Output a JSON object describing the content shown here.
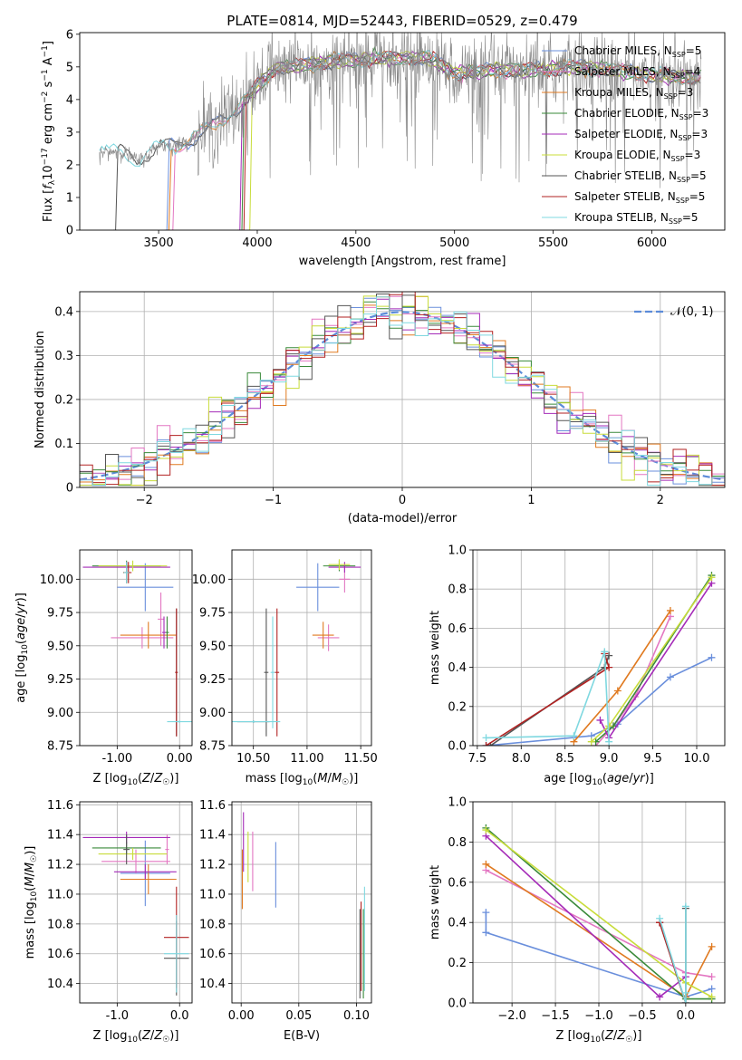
{
  "figure_title": "PLATE=0814, MJD=52443, FIBERID=0529, z=0.479",
  "models": [
    {
      "name": "Chabrier MILES",
      "nssp": "5",
      "color": "#6a8fdc"
    },
    {
      "name": "Salpeter MILES",
      "nssp": "4",
      "color": "#e377c2"
    },
    {
      "name": "Kroupa MILES",
      "nssp": "3",
      "color": "#e07a20"
    },
    {
      "name": "Chabrier ELODIE",
      "nssp": "3",
      "color": "#3a8a3a"
    },
    {
      "name": "Salpeter ELODIE",
      "nssp": "3",
      "color": "#a52bb8"
    },
    {
      "name": "Kroupa ELODIE",
      "nssp": "3",
      "color": "#c8dc3a"
    },
    {
      "name": "Chabrier STELIB",
      "nssp": "5",
      "color": "#555555"
    },
    {
      "name": "Salpeter STELIB",
      "nssp": "5",
      "color": "#b22222"
    },
    {
      "name": "Kroupa STELIB",
      "nssp": "5",
      "color": "#7fd8e0"
    }
  ],
  "chart_data": [
    {
      "id": "spectrum",
      "type": "line",
      "xlabel": "wavelength [Angstrom, rest frame]",
      "ylabel": "Flux [f_λ 10^-17 erg cm^-2 s^-1 A^-1]",
      "xlim": [
        3100,
        6370
      ],
      "ylim": [
        0,
        6.05
      ],
      "xticks": [
        3500,
        4000,
        4500,
        5000,
        5500,
        6000
      ],
      "yticks": [
        0,
        1,
        2,
        3,
        4,
        5,
        6
      ],
      "legend_position": "right",
      "data_color": "#888888",
      "observed_trend": {
        "x": [
          3200,
          3300,
          3400,
          3500,
          3600,
          3700,
          3800,
          3900,
          4000,
          4100,
          4200,
          4300,
          4400,
          4500,
          4600,
          4700,
          4800,
          4900,
          5000,
          5200,
          5400,
          5600,
          5800,
          6000,
          6200
        ],
        "y": [
          2.35,
          2.45,
          2.1,
          2.6,
          2.6,
          2.9,
          3.3,
          3.7,
          4.4,
          5.0,
          5.0,
          5.1,
          5.2,
          5.2,
          5.25,
          5.25,
          5.3,
          5.2,
          4.8,
          4.9,
          4.9,
          5.0,
          4.9,
          4.75,
          4.65
        ]
      }
    },
    {
      "id": "residuals",
      "type": "histogram",
      "xlabel": "(data-model)/error",
      "ylabel": "Normed distribution",
      "xlim": [
        -2.5,
        2.5
      ],
      "ylim": [
        0,
        0.445
      ],
      "xticks": [
        -2,
        -1,
        0,
        1,
        2
      ],
      "yticks": [
        0,
        0.1,
        0.2,
        0.3,
        0.4
      ],
      "bin_width": 0.1,
      "reference_curve": "N(0,1)",
      "reference_label": "𝒩(0, 1)",
      "legend_position": "top-right",
      "grid": true
    },
    {
      "id": "age_vs_Z",
      "type": "scatter",
      "xlabel": "Z [log10(Z/Z☉)]",
      "ylabel": "age  [log10(age/yr)]",
      "xlim": [
        -1.6,
        0.2
      ],
      "ylim": [
        8.75,
        10.22
      ],
      "xticks": [
        -1,
        0
      ],
      "yticks": [
        8.75,
        9.0,
        9.25,
        9.5,
        9.75,
        10.0
      ],
      "grid": true,
      "points": [
        {
          "model": 0,
          "x": -0.55,
          "y": 9.94,
          "xerr": 0.45,
          "yerr": 0.18
        },
        {
          "model": 1,
          "x": -0.6,
          "y": 9.56,
          "xerr": 0.5,
          "yerr": 0.08
        },
        {
          "model": 1,
          "x": -0.3,
          "y": 9.7,
          "xerr": 0.05,
          "yerr": 0.2
        },
        {
          "model": 2,
          "x": -0.5,
          "y": 9.58,
          "xerr": 0.45,
          "yerr": 0.1
        },
        {
          "model": 2,
          "x": -0.85,
          "y": 10.05,
          "xerr": 0.05,
          "yerr": 0.08
        },
        {
          "model": 3,
          "x": -0.85,
          "y": 10.1,
          "xerr": 0.55,
          "yerr": 0.04
        },
        {
          "model": 3,
          "x": -0.2,
          "y": 9.6,
          "xerr": 0.03,
          "yerr": 0.12
        },
        {
          "model": 4,
          "x": -0.85,
          "y": 10.09,
          "xerr": 0.7,
          "yerr": 0.04
        },
        {
          "model": 4,
          "x": -0.25,
          "y": 9.6,
          "xerr": 0.03,
          "yerr": 0.12
        },
        {
          "model": 5,
          "x": -0.75,
          "y": 10.1,
          "xerr": 0.55,
          "yerr": 0.04
        },
        {
          "model": 6,
          "x": -0.85,
          "y": 10.05,
          "xerr": 0.05,
          "yerr": 0.08
        },
        {
          "model": 6,
          "x": -0.05,
          "y": 9.3,
          "xerr": 0.02,
          "yerr": 0.48
        },
        {
          "model": 7,
          "x": -0.05,
          "y": 9.3,
          "xerr": 0.02,
          "yerr": 0.48
        },
        {
          "model": 7,
          "x": -0.82,
          "y": 10.05,
          "xerr": 0.05,
          "yerr": 0.08
        },
        {
          "model": 8,
          "x": 0.0,
          "y": 8.93,
          "xerr": 0.2,
          "yerr": 0.01
        },
        {
          "model": 8,
          "x": -0.85,
          "y": 10.05,
          "xerr": 0.04,
          "yerr": 0.08
        }
      ]
    },
    {
      "id": "age_vs_mass",
      "type": "scatter",
      "xlabel": "mass [log10(M/M☉)]",
      "ylabel": "",
      "xlim": [
        10.3,
        11.6
      ],
      "ylim": [
        8.75,
        10.22
      ],
      "xticks": [
        10.5,
        11.0,
        11.5
      ],
      "yticks": [
        8.75,
        9.0,
        9.25,
        9.5,
        9.75,
        10.0
      ],
      "grid": true,
      "points": [
        {
          "model": 0,
          "x": 11.1,
          "y": 9.94,
          "xerr": 0.2,
          "yerr": 0.18
        },
        {
          "model": 1,
          "x": 11.2,
          "y": 9.56,
          "xerr": 0.1,
          "yerr": 0.1
        },
        {
          "model": 1,
          "x": 11.35,
          "y": 10.0,
          "xerr": 0.05,
          "yerr": 0.1
        },
        {
          "model": 2,
          "x": 11.15,
          "y": 9.58,
          "xerr": 0.1,
          "yerr": 0.1
        },
        {
          "model": 3,
          "x": 11.3,
          "y": 10.1,
          "xerr": 0.15,
          "yerr": 0.04
        },
        {
          "model": 4,
          "x": 11.35,
          "y": 10.09,
          "xerr": 0.15,
          "yerr": 0.04
        },
        {
          "model": 5,
          "x": 11.3,
          "y": 10.11,
          "xerr": 0.1,
          "yerr": 0.04
        },
        {
          "model": 6,
          "x": 10.62,
          "y": 9.3,
          "xerr": 0.02,
          "yerr": 0.48
        },
        {
          "model": 6,
          "x": 10.5,
          "y": 8.93,
          "xerr": 0.15,
          "yerr": 0.01
        },
        {
          "model": 7,
          "x": 10.72,
          "y": 9.3,
          "xerr": 0.02,
          "yerr": 0.48
        },
        {
          "model": 8,
          "x": 10.68,
          "y": 9.3,
          "xerr": 0.02,
          "yerr": 0.42
        },
        {
          "model": 8,
          "x": 10.5,
          "y": 8.93,
          "xerr": 0.25,
          "yerr": 0.01
        }
      ]
    },
    {
      "id": "weight_vs_age",
      "type": "line",
      "xlabel": "age  [log10(age/yr)]",
      "ylabel": "mass weight",
      "xlim": [
        7.45,
        10.32
      ],
      "ylim": [
        0,
        1.0
      ],
      "xticks": [
        7.5,
        8.0,
        8.5,
        9.0,
        9.5,
        10.0
      ],
      "yticks": [
        0,
        0.2,
        0.4,
        0.6,
        0.8,
        1.0
      ],
      "grid": true,
      "series": [
        {
          "model": 0,
          "x": [
            7.6,
            8.8,
            9.1,
            9.7,
            10.17
          ],
          "y": [
            0.0,
            0.05,
            0.11,
            0.35,
            0.45
          ]
        },
        {
          "model": 1,
          "x": [
            8.85,
            9.05,
            9.3,
            9.7
          ],
          "y": [
            0.0,
            0.1,
            0.25,
            0.66
          ]
        },
        {
          "model": 2,
          "x": [
            8.6,
            9.1,
            9.7
          ],
          "y": [
            0.02,
            0.28,
            0.69
          ]
        },
        {
          "model": 3,
          "x": [
            8.85,
            9.05,
            10.17
          ],
          "y": [
            0.02,
            0.1,
            0.87
          ]
        },
        {
          "model": 4,
          "x": [
            8.9,
            9.0,
            10.17
          ],
          "y": [
            0.13,
            0.04,
            0.83
          ]
        },
        {
          "model": 5,
          "x": [
            8.8,
            9.0,
            10.17
          ],
          "y": [
            0.02,
            0.1,
            0.86
          ]
        },
        {
          "model": 6,
          "x": [
            7.65,
            8.95,
            9.0
          ],
          "y": [
            0.0,
            0.4,
            0.46
          ]
        },
        {
          "model": 7,
          "x": [
            7.6,
            9.0,
            8.95
          ],
          "y": [
            0.0,
            0.4,
            0.47
          ]
        },
        {
          "model": 8,
          "x": [
            7.6,
            8.6,
            8.95,
            9.0
          ],
          "y": [
            0.04,
            0.05,
            0.48,
            0.02
          ]
        }
      ]
    },
    {
      "id": "mass_vs_Z",
      "type": "scatter",
      "xlabel": "Z [log10(Z/Z☉)]",
      "ylabel": "mass [log10(M/M☉)]",
      "xlim": [
        -1.6,
        0.2
      ],
      "ylim": [
        10.27,
        11.62
      ],
      "xticks": [
        -1,
        0
      ],
      "yticks": [
        10.4,
        10.6,
        10.8,
        11.0,
        11.2,
        11.4,
        11.6
      ],
      "grid": true,
      "points": [
        {
          "model": 0,
          "x": -0.55,
          "y": 11.14,
          "xerr": 0.4,
          "yerr": 0.22
        },
        {
          "model": 1,
          "x": -0.7,
          "y": 11.22,
          "xerr": 0.55,
          "yerr": 0.08
        },
        {
          "model": 1,
          "x": -0.2,
          "y": 11.3,
          "xerr": 0.03,
          "yerr": 0.1
        },
        {
          "model": 2,
          "x": -0.5,
          "y": 11.1,
          "xerr": 0.45,
          "yerr": 0.1
        },
        {
          "model": 3,
          "x": -0.85,
          "y": 11.31,
          "xerr": 0.55,
          "yerr": 0.04
        },
        {
          "model": 4,
          "x": -0.85,
          "y": 11.38,
          "xerr": 0.7,
          "yerr": 0.04
        },
        {
          "model": 4,
          "x": -0.55,
          "y": 11.15,
          "xerr": 0.5,
          "yerr": 0.05
        },
        {
          "model": 5,
          "x": -0.75,
          "y": 11.27,
          "xerr": 0.55,
          "yerr": 0.04
        },
        {
          "model": 6,
          "x": -0.85,
          "y": 11.3,
          "xerr": 0.05,
          "yerr": 0.1
        },
        {
          "model": 6,
          "x": -0.05,
          "y": 10.57,
          "xerr": 0.2,
          "yerr": 0.25
        },
        {
          "model": 7,
          "x": -0.05,
          "y": 10.71,
          "xerr": 0.2,
          "yerr": 0.34
        },
        {
          "model": 8,
          "x": -0.05,
          "y": 10.6,
          "xerr": 0.2,
          "yerr": 0.26
        }
      ]
    },
    {
      "id": "mass_vs_ebv",
      "type": "scatter",
      "xlabel": "E(B-V)",
      "ylabel": "",
      "xlim": [
        -0.008,
        0.113
      ],
      "ylim": [
        10.27,
        11.62
      ],
      "xticks": [
        0.0,
        0.05,
        0.1
      ],
      "yticks": [
        10.4,
        10.6,
        10.8,
        11.0,
        11.2,
        11.4,
        11.6
      ],
      "grid": true,
      "points": [
        {
          "model": 0,
          "x": 0.03,
          "y": 11.13,
          "xerr": 0,
          "yerr": 0.22
        },
        {
          "model": 1,
          "x": 0.01,
          "y": 11.22,
          "xerr": 0,
          "yerr": 0.2
        },
        {
          "model": 2,
          "x": 0.001,
          "y": 11.1,
          "xerr": 0,
          "yerr": 0.2
        },
        {
          "model": 3,
          "x": 0.106,
          "y": 10.6,
          "xerr": 0,
          "yerr": 0.3
        },
        {
          "model": 4,
          "x": 0.002,
          "y": 11.35,
          "xerr": 0,
          "yerr": 0.2
        },
        {
          "model": 5,
          "x": 0.006,
          "y": 11.25,
          "xerr": 0,
          "yerr": 0.17
        },
        {
          "model": 6,
          "x": 0.103,
          "y": 10.6,
          "xerr": 0,
          "yerr": 0.3
        },
        {
          "model": 7,
          "x": 0.104,
          "y": 10.65,
          "xerr": 0,
          "yerr": 0.3
        },
        {
          "model": 8,
          "x": 0.107,
          "y": 10.7,
          "xerr": 0,
          "yerr": 0.35
        }
      ]
    },
    {
      "id": "weight_vs_Z",
      "type": "line",
      "xlabel": "Z [log10(Z/Z☉)]",
      "ylabel": "mass weight",
      "xlim": [
        -2.45,
        0.45
      ],
      "ylim": [
        0,
        1.0
      ],
      "xticks": [
        -2.0,
        -1.5,
        -1.0,
        -0.5,
        0.0
      ],
      "yticks": [
        0,
        0.2,
        0.4,
        0.6,
        0.8,
        1.0
      ],
      "grid": true,
      "series": [
        {
          "model": 0,
          "x": [
            -2.3,
            -2.3,
            0.0,
            0.3
          ],
          "y": [
            0.45,
            0.35,
            0.03,
            0.07
          ]
        },
        {
          "model": 1,
          "x": [
            -2.3,
            0.0,
            0.3
          ],
          "y": [
            0.66,
            0.15,
            0.13
          ]
        },
        {
          "model": 2,
          "x": [
            -2.3,
            0.0,
            0.3
          ],
          "y": [
            0.69,
            0.03,
            0.28
          ]
        },
        {
          "model": 3,
          "x": [
            -2.3,
            0.0,
            0.3
          ],
          "y": [
            0.87,
            0.02,
            0.02
          ]
        },
        {
          "model": 4,
          "x": [
            -2.3,
            -0.3,
            0.0
          ],
          "y": [
            0.83,
            0.03,
            0.13
          ]
        },
        {
          "model": 5,
          "x": [
            -2.3,
            0.0,
            0.3
          ],
          "y": [
            0.86,
            0.1,
            0.03
          ]
        },
        {
          "model": 6,
          "x": [
            -0.3,
            -0.3,
            0.0,
            0.0
          ],
          "y": [
            0.4,
            0.4,
            0.0,
            0.47
          ]
        },
        {
          "model": 7,
          "x": [
            -0.3,
            -0.3,
            0.0
          ],
          "y": [
            0.4,
            0.4,
            0.0
          ]
        },
        {
          "model": 8,
          "x": [
            -0.3,
            0.0,
            0.0,
            0.0
          ],
          "y": [
            0.42,
            0.0,
            0.48,
            0.05
          ]
        }
      ]
    }
  ]
}
